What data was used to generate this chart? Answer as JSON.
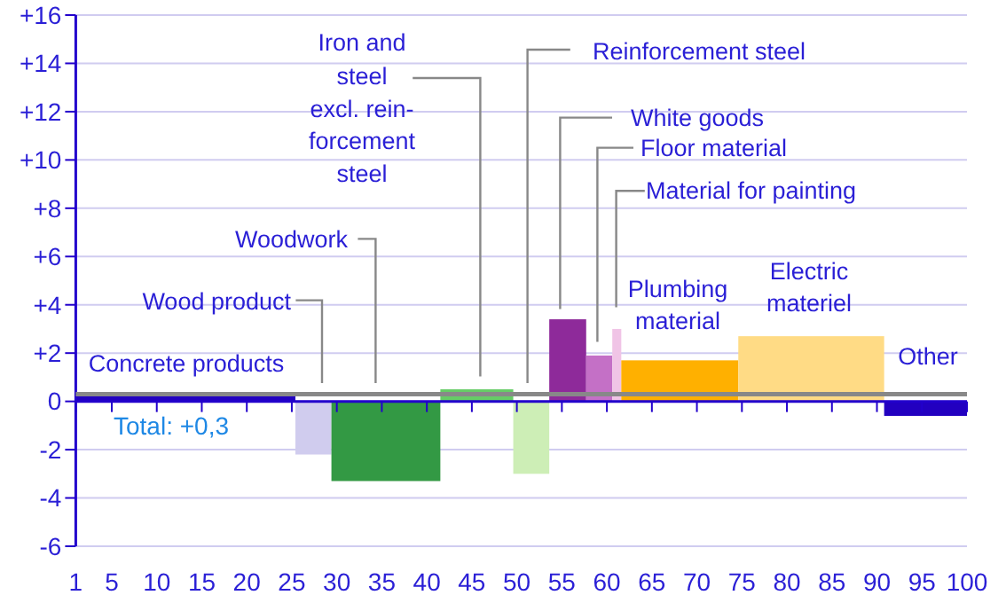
{
  "chart_data": {
    "type": "histogram",
    "bins": [
      1,
      25.4,
      29.4,
      41.5,
      49.6,
      53.6,
      57.7,
      60.6,
      61.6,
      74.6,
      90.8,
      100
    ],
    "values": [
      0.25,
      -2.2,
      -3.3,
      0.5,
      -3.0,
      3.4,
      1.9,
      3.0,
      1.7,
      2.7,
      -0.6
    ],
    "colors": [
      "#2200c0",
      "#d0ccee",
      "#339944",
      "#66cc66",
      "#cdeeb6",
      "#8e2a9a",
      "#c470c6",
      "#f0c4e6",
      "#ffb000",
      "#ffdb85",
      "#2200c0"
    ],
    "xlim": [
      1,
      100
    ],
    "xticks": [
      1,
      5,
      10,
      15,
      20,
      25,
      30,
      35,
      40,
      45,
      50,
      55,
      60,
      65,
      70,
      75,
      80,
      85,
      90,
      95,
      100
    ],
    "ylim": [
      -6,
      16
    ],
    "yticks": [
      {
        "value": -6,
        "label": "-6"
      },
      {
        "value": -4,
        "label": "-4"
      },
      {
        "value": -2,
        "label": "-2"
      },
      0,
      {
        "value": 2,
        "label": "+2"
      },
      {
        "value": 4,
        "label": "+4"
      },
      {
        "value": 6,
        "label": "+6"
      },
      {
        "value": 8,
        "label": "+8"
      },
      {
        "value": 10,
        "label": "+10"
      },
      {
        "value": 12,
        "label": "+12"
      },
      {
        "value": 14,
        "label": "+14"
      },
      {
        "value": 16,
        "label": "+16"
      }
    ],
    "grid": "y",
    "ref_lines": [
      {
        "axis": "y",
        "value": 0,
        "color": "#2200cc"
      },
      {
        "axis": "y",
        "value": 0.3,
        "label": "Total: +0,3",
        "color": "#888888"
      }
    ],
    "annotations": [
      "Concrete products",
      "Wood product",
      "Woodwork",
      "Iron and\nsteel\nexcl. rein-\nforcement\nsteel",
      "Reinforcement steel",
      "White goods",
      "Floor material",
      "Material for painting",
      "Plumbing\nmaterial",
      "Electric\nmateriel",
      "Other"
    ]
  }
}
